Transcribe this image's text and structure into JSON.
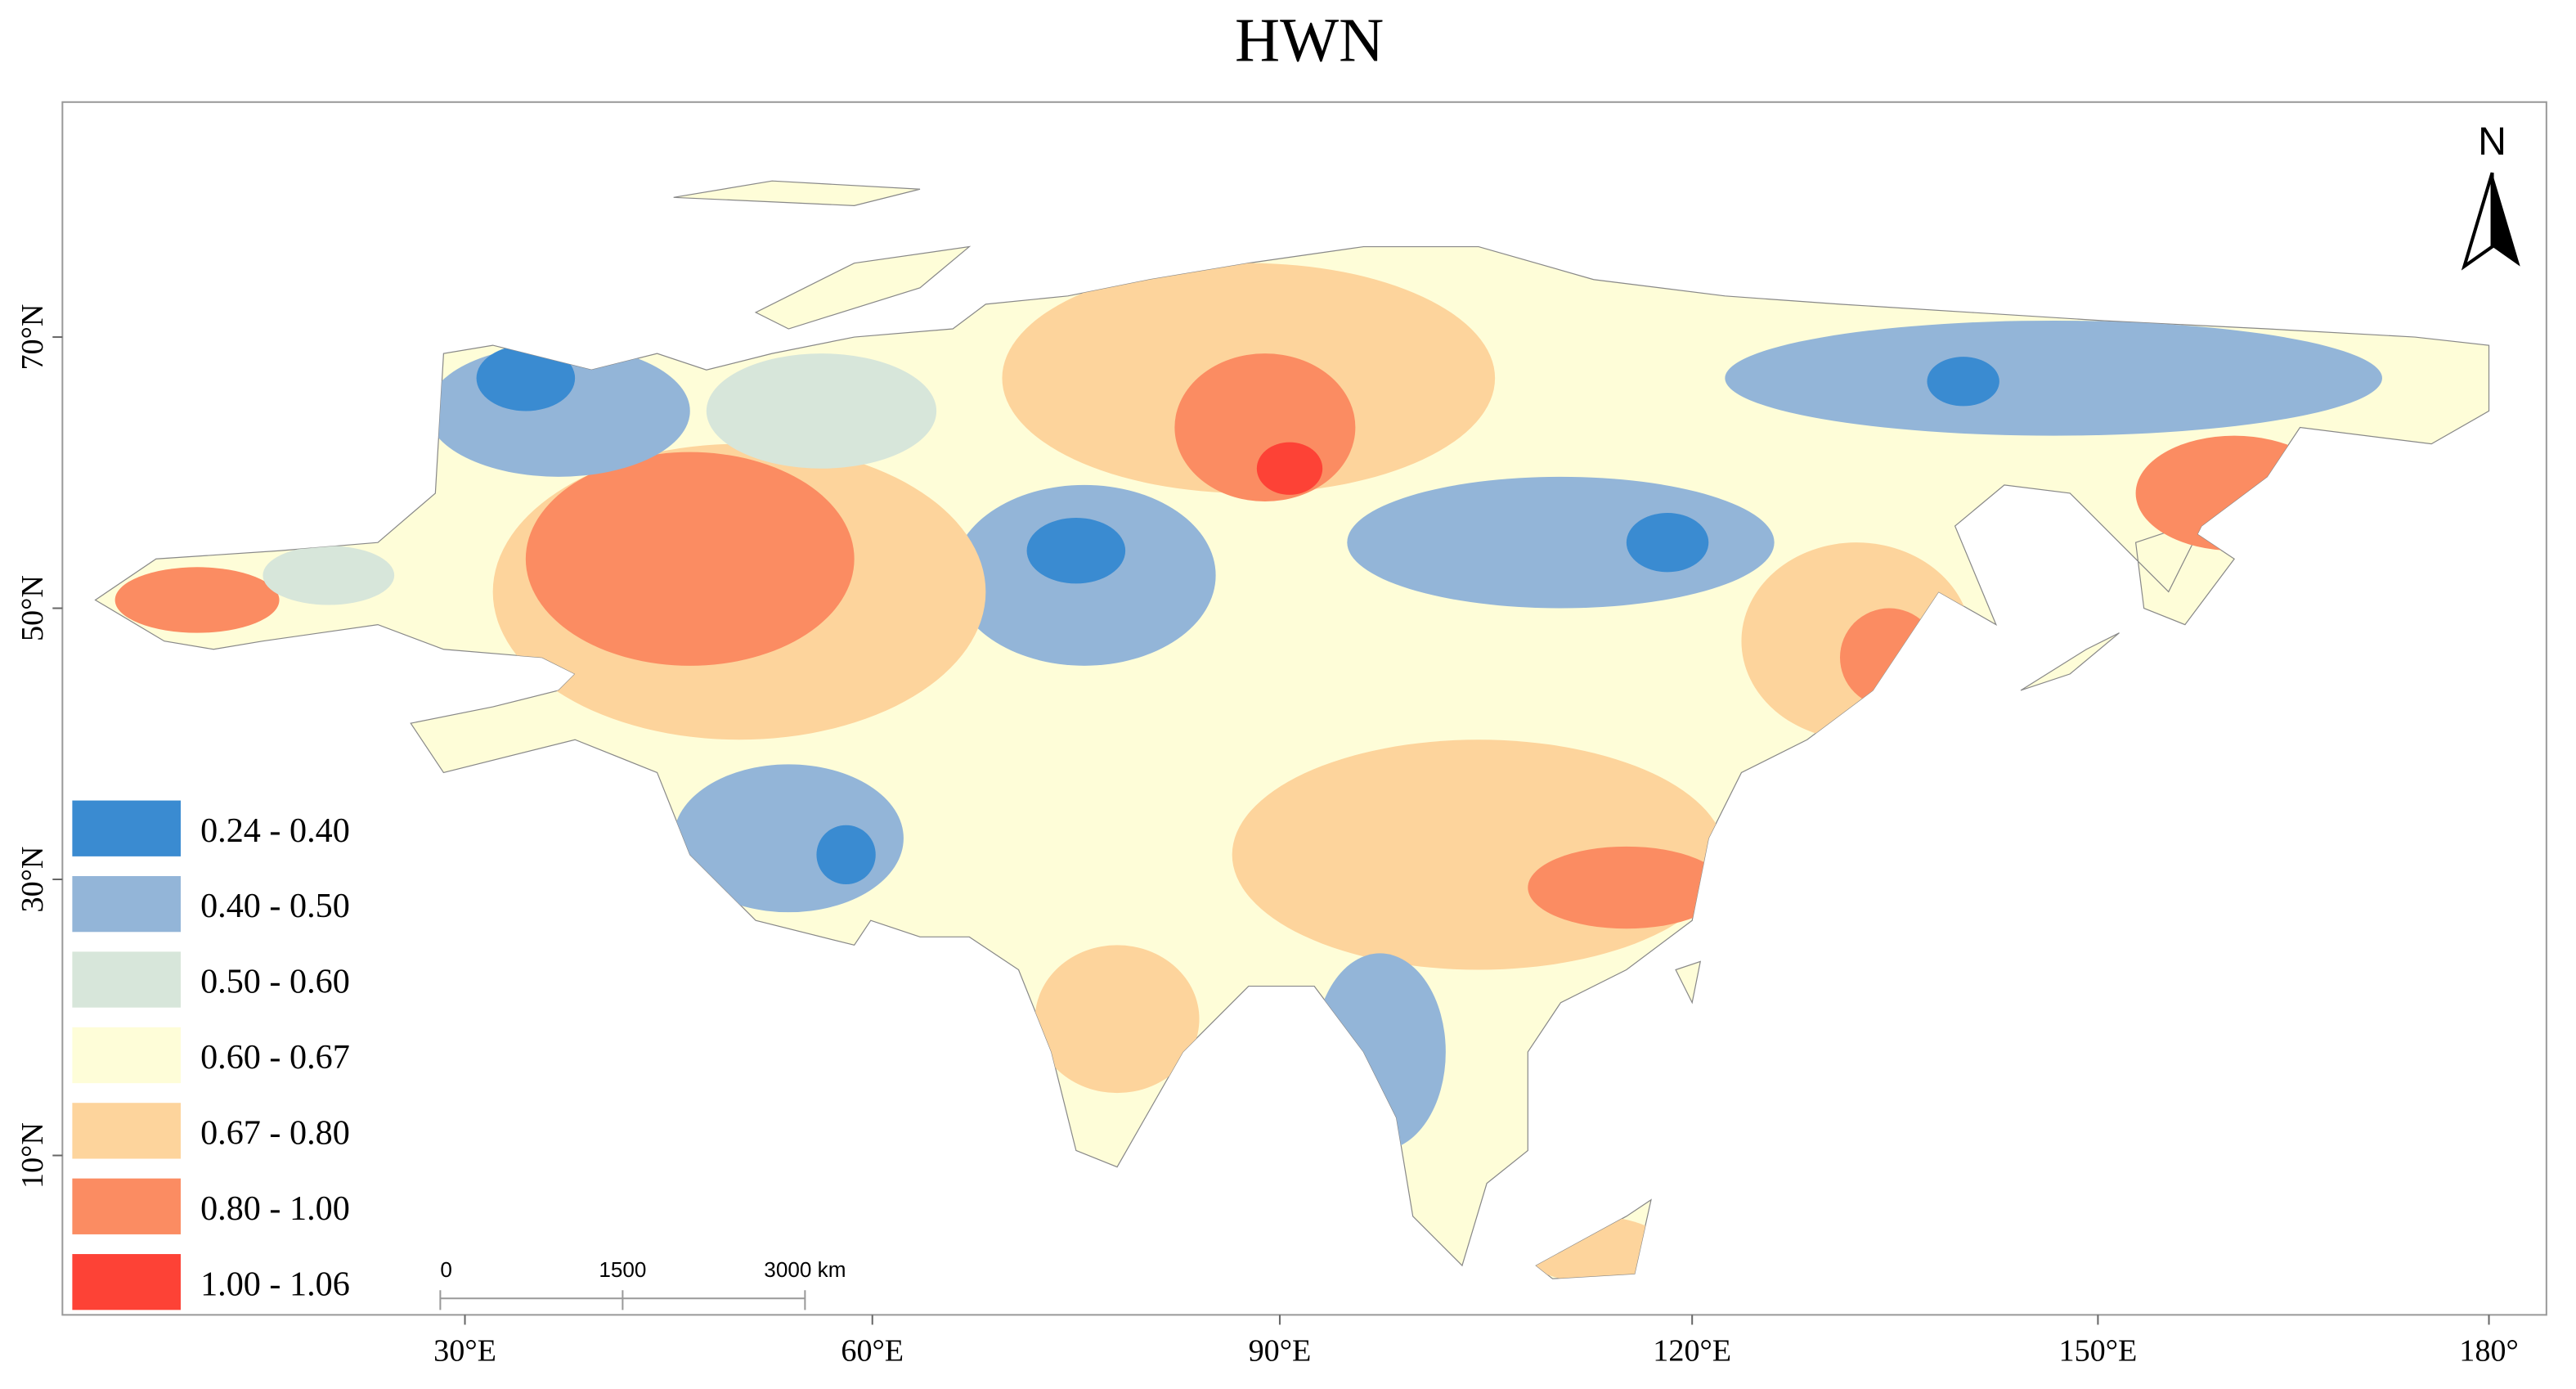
{
  "title": "HWN",
  "north_label": "N",
  "lon_labels": [
    "30°E",
    "60°E",
    "90°E",
    "120°E",
    "150°E",
    "180°"
  ],
  "lat_labels": [
    "70°N",
    "50°N",
    "30°N",
    "10°N"
  ],
  "legend": [
    {
      "label": "0.24 - 0.40",
      "color": "#3a8bd1"
    },
    {
      "label": "0.40 - 0.50",
      "color": "#93b5d8"
    },
    {
      "label": "0.50 - 0.60",
      "color": "#d7e6da"
    },
    {
      "label": "0.60 - 0.67",
      "color": "#fefdd8"
    },
    {
      "label": "0.67 - 0.80",
      "color": "#fdd49c"
    },
    {
      "label": "0.80 - 1.00",
      "color": "#fb8c62"
    },
    {
      "label": "1.00 - 1.06",
      "color": "#fd4236"
    }
  ],
  "scale_bar": [
    "0",
    "1500",
    "3000 km"
  ]
}
